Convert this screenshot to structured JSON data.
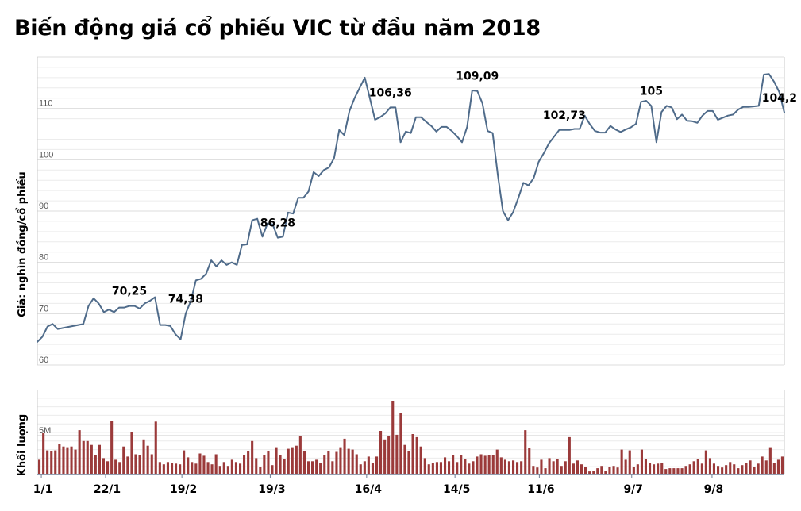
{
  "title": "Biến động giá cổ phiếu VIC từ đầu năm 2018",
  "chart_data": [
    {
      "type": "line",
      "title": "Biến động giá cổ phiếu VIC từ đầu năm 2018",
      "ylabel": "Giá: nghìn đồng/cổ phiếu",
      "ylim": [
        60,
        120
      ],
      "yticks": [
        "60",
        "70",
        "80",
        "90",
        "100",
        "110"
      ],
      "grid": true,
      "series_color": "#4f6b8a",
      "values": [
        64.5,
        65.5,
        67.5,
        68,
        67,
        67.2,
        67.4,
        67.6,
        67.8,
        68,
        71.5,
        73,
        72,
        70.3,
        70.8,
        70.3,
        71.2,
        71.2,
        71.5,
        71.5,
        71,
        72,
        72.5,
        73.2,
        67.8,
        67.8,
        67.6,
        66,
        65,
        70,
        72.5,
        76.5,
        76.8,
        77.8,
        80.4,
        79.2,
        80.4,
        79.5,
        80,
        79.5,
        83.4,
        83.5,
        88.2,
        88.5,
        85,
        87.6,
        87.4,
        84.8,
        85,
        89.7,
        89.5,
        92.6,
        92.6,
        93.8,
        97.6,
        96.8,
        98,
        98.5,
        100.3,
        105.8,
        104.8,
        109.5,
        112,
        114,
        116,
        112,
        107.8,
        108.3,
        109,
        110.2,
        110.2,
        103.4,
        105.5,
        105.2,
        108.3,
        108.3,
        107.4,
        106.6,
        105.5,
        106.4,
        106.4,
        105.6,
        104.6,
        103.4,
        106.4,
        113.5,
        113.4,
        111,
        105.6,
        105.2,
        97,
        90,
        88.2,
        89.8,
        92.5,
        95.5,
        95,
        96.4,
        99.6,
        101.3,
        103.2,
        104.5,
        105.8,
        105.8,
        105.8,
        106,
        106,
        108.6,
        106.9,
        105.6,
        105.3,
        105.3,
        106.6,
        105.9,
        105.4,
        105.9,
        106.3,
        107,
        111.3,
        111.5,
        110.5,
        103.4,
        109.3,
        110.5,
        110.2,
        107.9,
        108.8,
        107.6,
        107.5,
        107.2,
        108.6,
        109.5,
        109.5,
        107.8,
        108.2,
        108.6,
        108.8,
        109.8,
        110.3,
        110.3,
        110.4,
        110.5,
        116.6,
        116.7,
        115.2,
        113.2,
        109.2
      ],
      "annotations": [
        {
          "index": 18,
          "label": "70,25"
        },
        {
          "index": 29,
          "label": "74,38"
        },
        {
          "index": 47,
          "label": "86,28"
        },
        {
          "index": 69,
          "label": "106,36"
        },
        {
          "index": 86,
          "label": "109,09"
        },
        {
          "index": 103,
          "label": "102,73"
        },
        {
          "index": 120,
          "label": "105"
        },
        {
          "index": 146,
          "label": "104,2"
        }
      ]
    },
    {
      "type": "bar",
      "ylabel": "Khối lượng",
      "yticks": [
        "5M"
      ],
      "series_color": "#9b3a3a",
      "x_tick_labels": [
        {
          "index": 1,
          "label": "1/1"
        },
        {
          "index": 17,
          "label": "22/1"
        },
        {
          "index": 36,
          "label": "19/2"
        },
        {
          "index": 58,
          "label": "19/3"
        },
        {
          "index": 82,
          "label": "16/4"
        },
        {
          "index": 104,
          "label": "14/5"
        },
        {
          "index": 125,
          "label": "11/6"
        },
        {
          "index": 148,
          "label": "9/7"
        },
        {
          "index": 168,
          "label": "9/8"
        }
      ],
      "values": [
        1.9,
        5.3,
        3.1,
        3.0,
        3.1,
        3.9,
        3.6,
        3.5,
        3.6,
        3.2,
        5.7,
        4.3,
        4.3,
        3.8,
        2.5,
        3.8,
        2.1,
        1.7,
        6.9,
        1.9,
        1.6,
        3.6,
        2.3,
        5.4,
        2.6,
        2.5,
        4.5,
        3.7,
        2.6,
        6.8,
        1.6,
        1.3,
        1.6,
        1.5,
        1.4,
        1.3,
        3.1,
        2.2,
        1.6,
        1.4,
        2.7,
        2.4,
        1.6,
        1.3,
        2.6,
        1.1,
        1.6,
        1.1,
        1.9,
        1.6,
        1.4,
        2.5,
        3.0,
        4.3,
        2.1,
        1.0,
        2.5,
        3.0,
        1.2,
        3.5,
        2.5,
        2.0,
        3.3,
        3.5,
        3.7,
        4.9,
        3.0,
        1.7,
        1.7,
        1.9,
        1.5,
        2.5,
        3.0,
        1.7,
        2.9,
        3.5,
        4.6,
        3.3,
        3.2,
        2.6,
        1.3,
        1.7,
        2.3,
        1.5,
        2.3,
        5.6,
        4.5,
        4.9,
        9.4,
        5.1,
        7.9,
        3.8,
        3.0,
        5.2,
        4.8,
        3.6,
        2.1,
        1.3,
        1.5,
        1.6,
        1.6,
        2.2,
        1.7,
        2.5,
        1.6,
        2.5,
        2.0,
        1.4,
        1.7,
        2.3,
        2.6,
        2.4,
        2.5,
        2.5,
        3.2,
        2.2,
        1.9,
        1.7,
        1.8,
        1.6,
        1.7,
        5.7,
        3.4,
        1.1,
        0.9,
        1.9,
        0.8,
        2.1,
        1.7,
        2.0,
        1.1,
        1.7,
        4.8,
        1.4,
        1.8,
        1.3,
        1.0,
        0.4,
        0.5,
        0.8,
        1.1,
        0.5,
        1.0,
        1.1,
        0.9,
        3.2,
        1.9,
        3.1,
        1.0,
        1.3,
        3.2,
        2.0,
        1.5,
        1.3,
        1.4,
        1.5,
        0.7,
        0.8,
        0.8,
        0.8,
        0.8,
        1.1,
        1.3,
        1.7,
        2.0,
        1.4,
        3.1,
        2.1,
        1.4,
        1.1,
        0.9,
        1.2,
        1.6,
        1.3,
        0.8,
        1.2,
        1.5,
        1.8,
        1.0,
        1.4,
        2.3,
        1.8,
        3.5,
        1.5,
        1.9,
        2.3
      ]
    }
  ]
}
